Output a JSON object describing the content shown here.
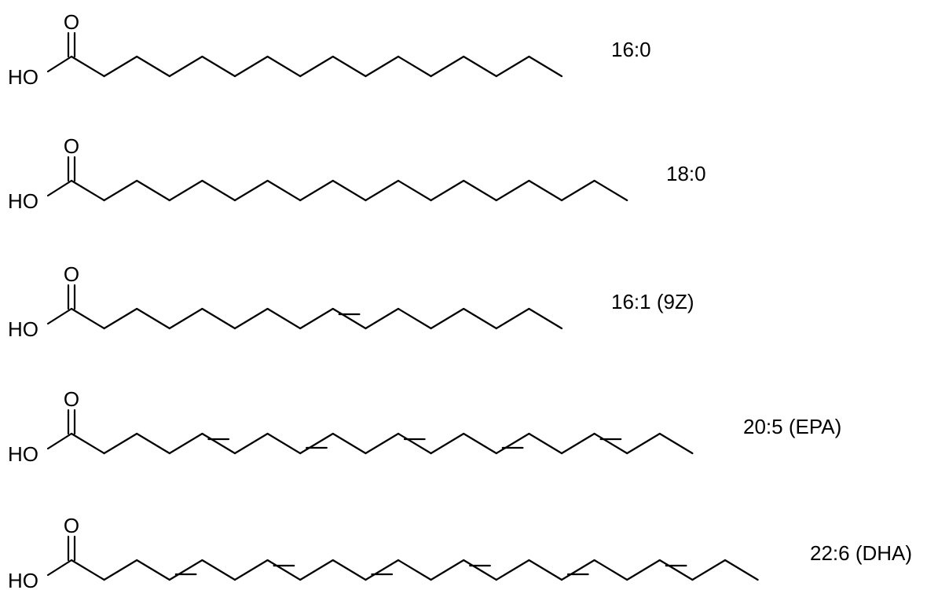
{
  "atoms": {
    "oxygen": "O",
    "hydroxyl": "HO"
  },
  "molecules": [
    {
      "id": "palmitic",
      "label": "16:0",
      "carbons": 16,
      "cis_double_bonds": []
    },
    {
      "id": "stearic",
      "label": "18:0",
      "carbons": 18,
      "cis_double_bonds": []
    },
    {
      "id": "palmitoleic",
      "label": "16:1 (9Z)",
      "carbons": 16,
      "cis_double_bonds": [
        9
      ]
    },
    {
      "id": "epa",
      "label": "20:5 (EPA)",
      "carbons": 20,
      "cis_double_bonds": [
        5,
        8,
        11,
        14,
        17
      ]
    },
    {
      "id": "dha",
      "label": "22:6 (DHA)",
      "carbons": 22,
      "cis_double_bonds": [
        4,
        7,
        10,
        13,
        16,
        19
      ]
    }
  ]
}
